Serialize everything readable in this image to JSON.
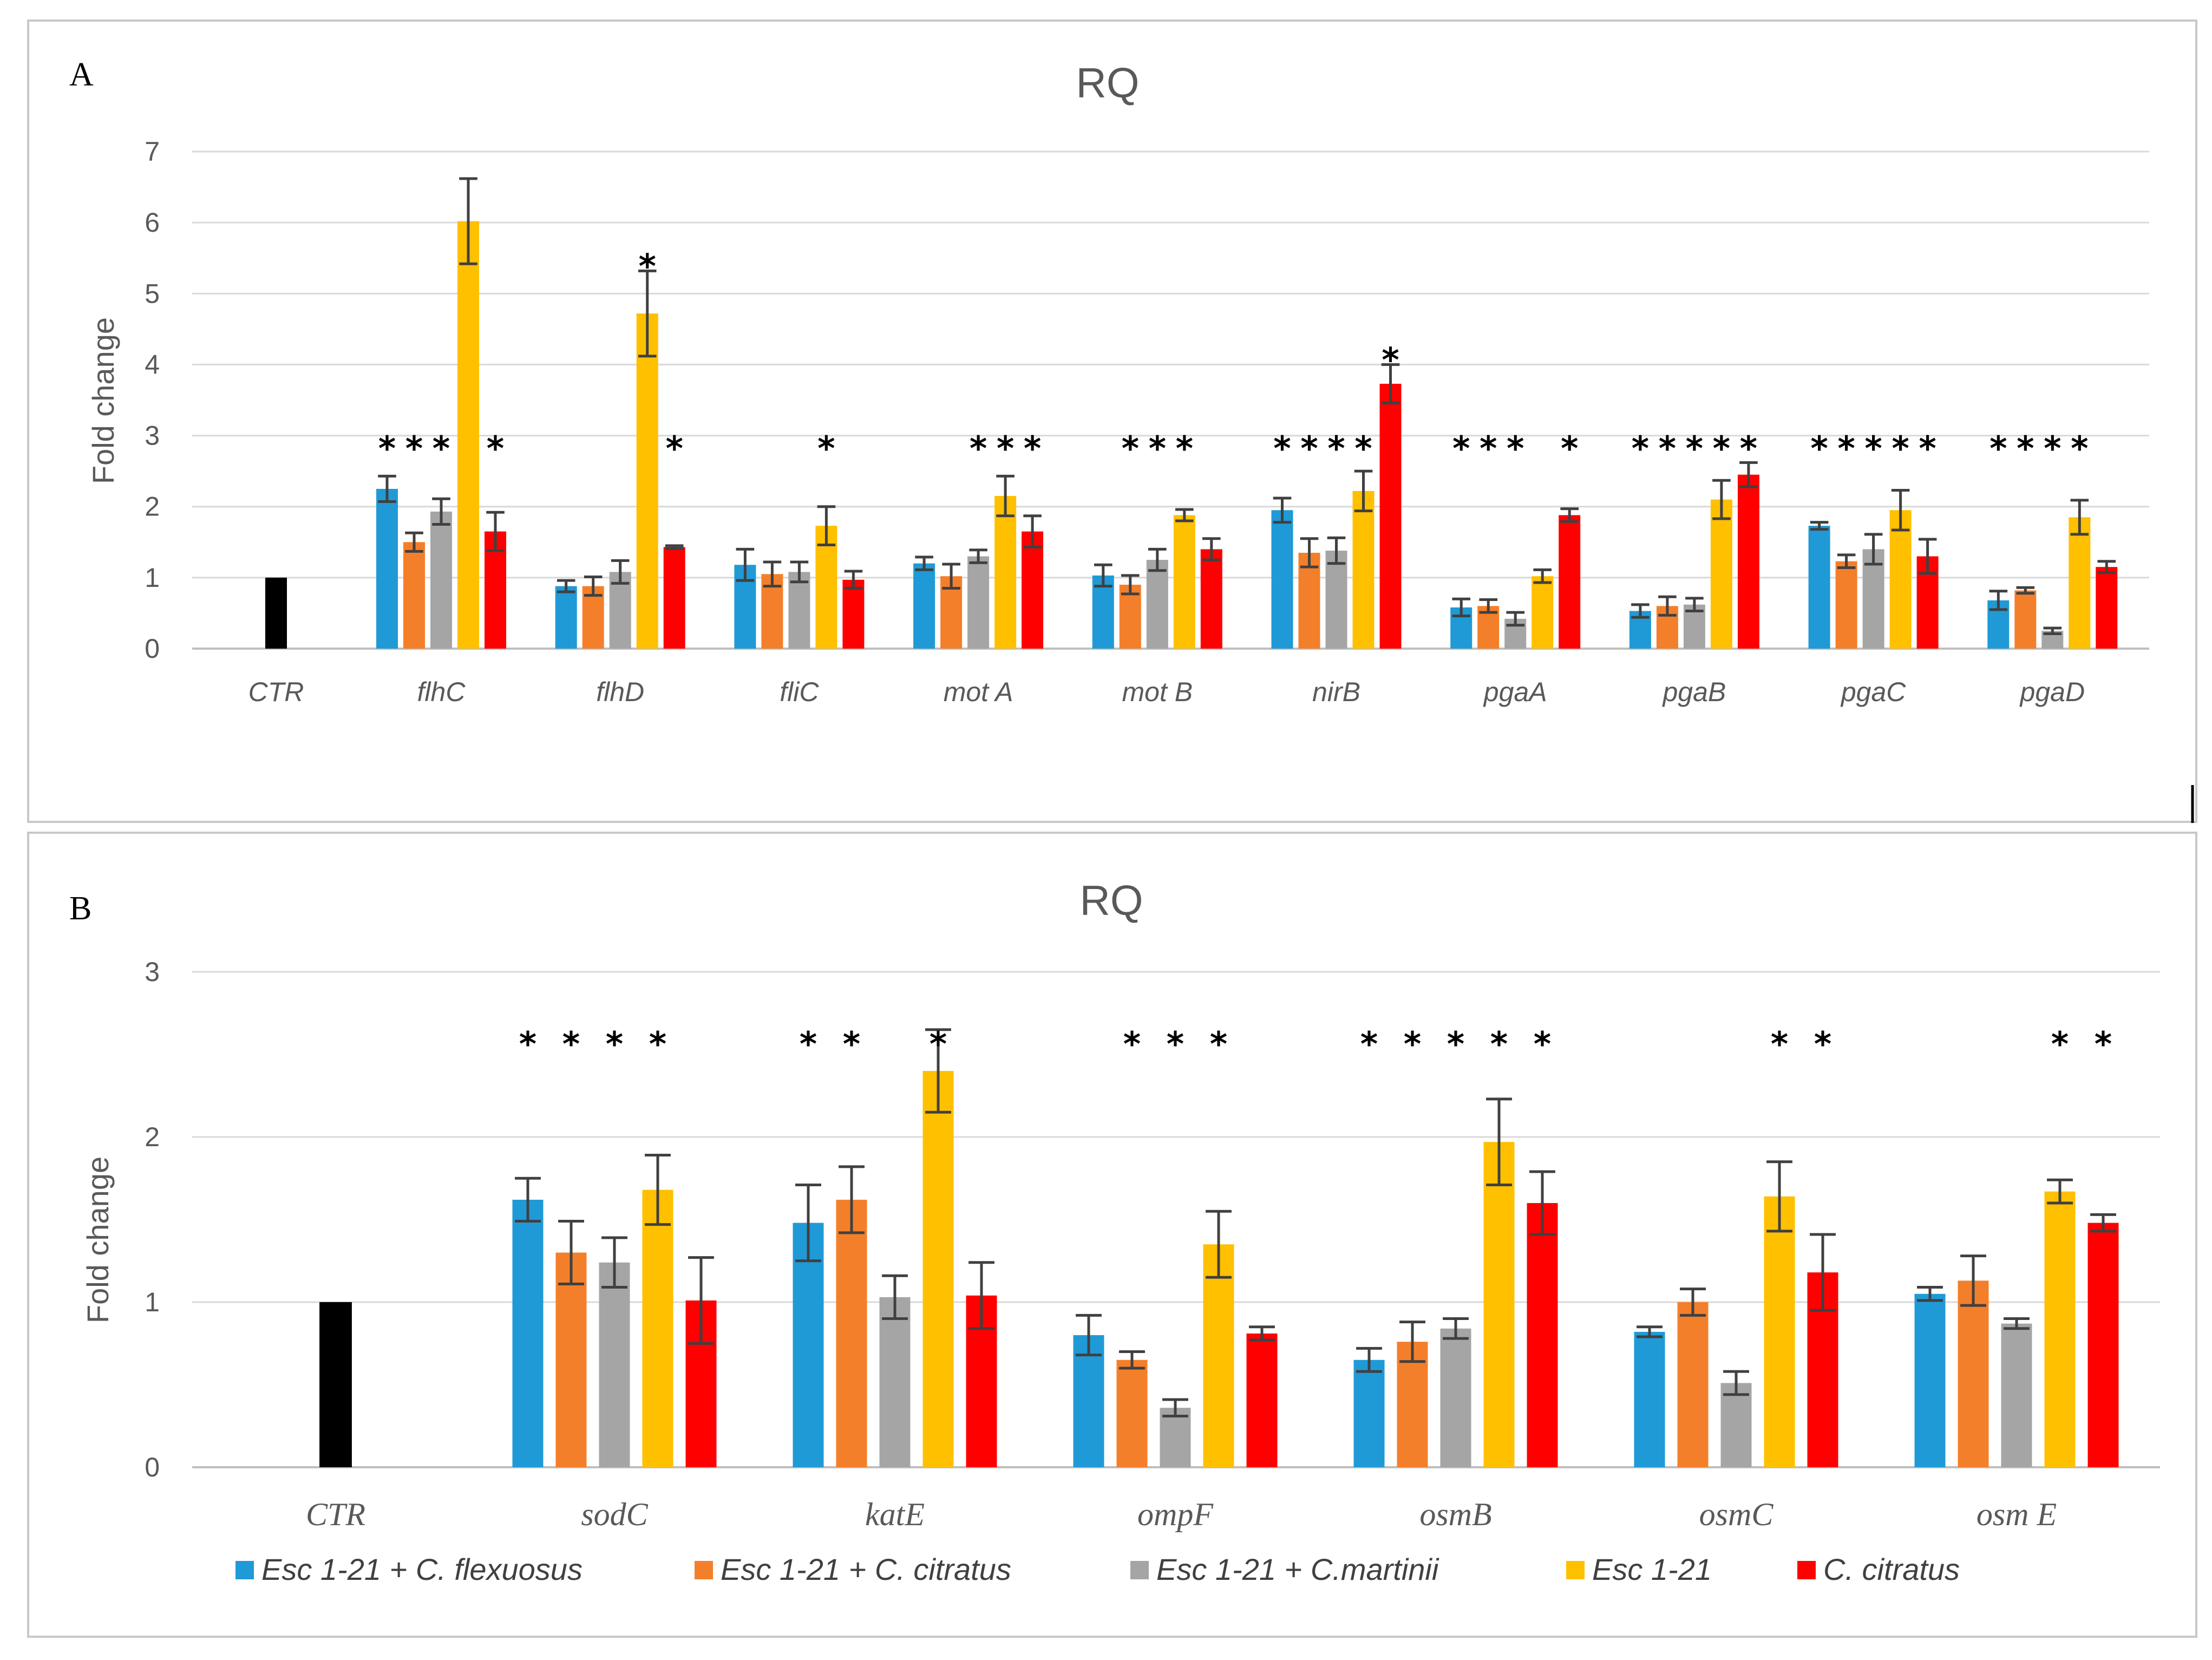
{
  "colors": {
    "CTR": "#000000",
    "series": [
      "#1f9ad6",
      "#f47f2a",
      "#a5a5a5",
      "#ffc000",
      "#ff0000"
    ]
  },
  "legend": {
    "items": [
      "Esc 1-21 + C. flexuosus",
      "Esc 1-21 + C. citratus",
      "Esc 1-21 + C.martinii",
      "Esc 1-21",
      "C. citratus"
    ]
  },
  "chart_data": [
    {
      "type": "bar",
      "panel_label": "A",
      "title": "RQ",
      "ylabel": "Fold change",
      "xlabel": "",
      "ylim": [
        0,
        7
      ],
      "yticks": [
        0,
        1,
        2,
        3,
        4,
        5,
        6,
        7
      ],
      "ytick_labels": [
        "0",
        "1",
        "2",
        "3",
        "4",
        "5",
        "6",
        "7"
      ],
      "control": {
        "label": "CTR",
        "value": 1.0
      },
      "categories": [
        "flhC",
        "flhD",
        "fliC",
        "mot A",
        "mot B",
        "nirB",
        "pgaA",
        "pgaB",
        "pgaC",
        "pgaD"
      ],
      "series": [
        {
          "name": "Esc 1-21 + C. flexuosus",
          "values": [
            2.25,
            0.88,
            1.18,
            1.2,
            1.03,
            1.95,
            0.58,
            0.53,
            1.73,
            0.68
          ],
          "errors": [
            0.18,
            0.08,
            0.22,
            0.09,
            0.15,
            0.17,
            0.12,
            0.09,
            0.05,
            0.13
          ]
        },
        {
          "name": "Esc 1-21 + C. citratus",
          "values": [
            1.5,
            0.88,
            1.05,
            1.02,
            0.9,
            1.35,
            0.6,
            0.6,
            1.23,
            0.82
          ],
          "errors": [
            0.13,
            0.13,
            0.17,
            0.17,
            0.13,
            0.2,
            0.09,
            0.13,
            0.09,
            0.04
          ]
        },
        {
          "name": "Esc 1-21 + C.martinii",
          "values": [
            1.93,
            1.08,
            1.08,
            1.3,
            1.25,
            1.38,
            0.42,
            0.62,
            1.4,
            0.25
          ],
          "errors": [
            0.18,
            0.16,
            0.14,
            0.09,
            0.15,
            0.18,
            0.09,
            0.09,
            0.21,
            0.04
          ]
        },
        {
          "name": "Esc 1-21",
          "values": [
            6.02,
            4.72,
            1.73,
            2.15,
            1.88,
            2.22,
            1.02,
            2.1,
            1.95,
            1.85
          ],
          "errors": [
            0.6,
            0.6,
            0.27,
            0.28,
            0.08,
            0.28,
            0.09,
            0.27,
            0.28,
            0.24
          ]
        },
        {
          "name": "C. citratus",
          "values": [
            1.65,
            1.43,
            0.97,
            1.65,
            1.4,
            3.73,
            1.88,
            2.45,
            1.3,
            1.15
          ],
          "errors": [
            0.27,
            0.02,
            0.12,
            0.22,
            0.15,
            0.27,
            0.09,
            0.17,
            0.24,
            0.08
          ]
        }
      ],
      "significance": [
        [
          true,
          true,
          true,
          false,
          true
        ],
        [
          false,
          false,
          false,
          true,
          true
        ],
        [
          false,
          false,
          false,
          true,
          false
        ],
        [
          false,
          false,
          true,
          true,
          true
        ],
        [
          false,
          true,
          true,
          true,
          false
        ],
        [
          true,
          true,
          true,
          true,
          true
        ],
        [
          true,
          true,
          true,
          false,
          true
        ],
        [
          true,
          true,
          true,
          true,
          true
        ],
        [
          true,
          true,
          true,
          true,
          true
        ],
        [
          true,
          true,
          true,
          true,
          false
        ]
      ],
      "grid": true
    },
    {
      "type": "bar",
      "panel_label": "B",
      "title": "RQ",
      "ylabel": "Fold change",
      "xlabel": "",
      "ylim": [
        0,
        3
      ],
      "yticks": [
        0,
        1,
        2,
        3
      ],
      "ytick_labels": [
        "0",
        "1",
        "2",
        "3"
      ],
      "control": {
        "label": "CTR",
        "value": 1.0
      },
      "categories": [
        "sodC",
        "katE",
        "ompF",
        "osmB",
        "osmC",
        "osm E"
      ],
      "series": [
        {
          "name": "Esc 1-21 + C. flexuosus",
          "values": [
            1.62,
            1.48,
            0.8,
            0.65,
            0.82,
            1.05
          ],
          "errors": [
            0.13,
            0.23,
            0.12,
            0.07,
            0.03,
            0.04
          ]
        },
        {
          "name": "Esc 1-21 + C. citratus",
          "values": [
            1.3,
            1.62,
            0.65,
            0.76,
            1.0,
            1.13
          ],
          "errors": [
            0.19,
            0.2,
            0.05,
            0.12,
            0.08,
            0.15
          ]
        },
        {
          "name": "Esc 1-21 + C.martinii",
          "values": [
            1.24,
            1.03,
            0.36,
            0.84,
            0.51,
            0.87
          ],
          "errors": [
            0.15,
            0.13,
            0.05,
            0.06,
            0.07,
            0.03
          ]
        },
        {
          "name": "Esc 1-21",
          "values": [
            1.68,
            2.4,
            1.35,
            1.97,
            1.64,
            1.67
          ],
          "errors": [
            0.21,
            0.25,
            0.2,
            0.26,
            0.21,
            0.07
          ]
        },
        {
          "name": "C. citratus",
          "values": [
            1.01,
            1.04,
            0.81,
            1.6,
            1.18,
            1.48
          ],
          "errors": [
            0.26,
            0.2,
            0.04,
            0.19,
            0.23,
            0.05
          ]
        }
      ],
      "significance": [
        [
          true,
          true,
          true,
          true,
          false
        ],
        [
          true,
          true,
          false,
          true,
          false
        ],
        [
          false,
          true,
          true,
          true,
          false
        ],
        [
          true,
          true,
          true,
          true,
          true
        ],
        [
          false,
          false,
          false,
          true,
          true
        ],
        [
          false,
          false,
          false,
          true,
          true
        ]
      ],
      "grid": true
    }
  ]
}
